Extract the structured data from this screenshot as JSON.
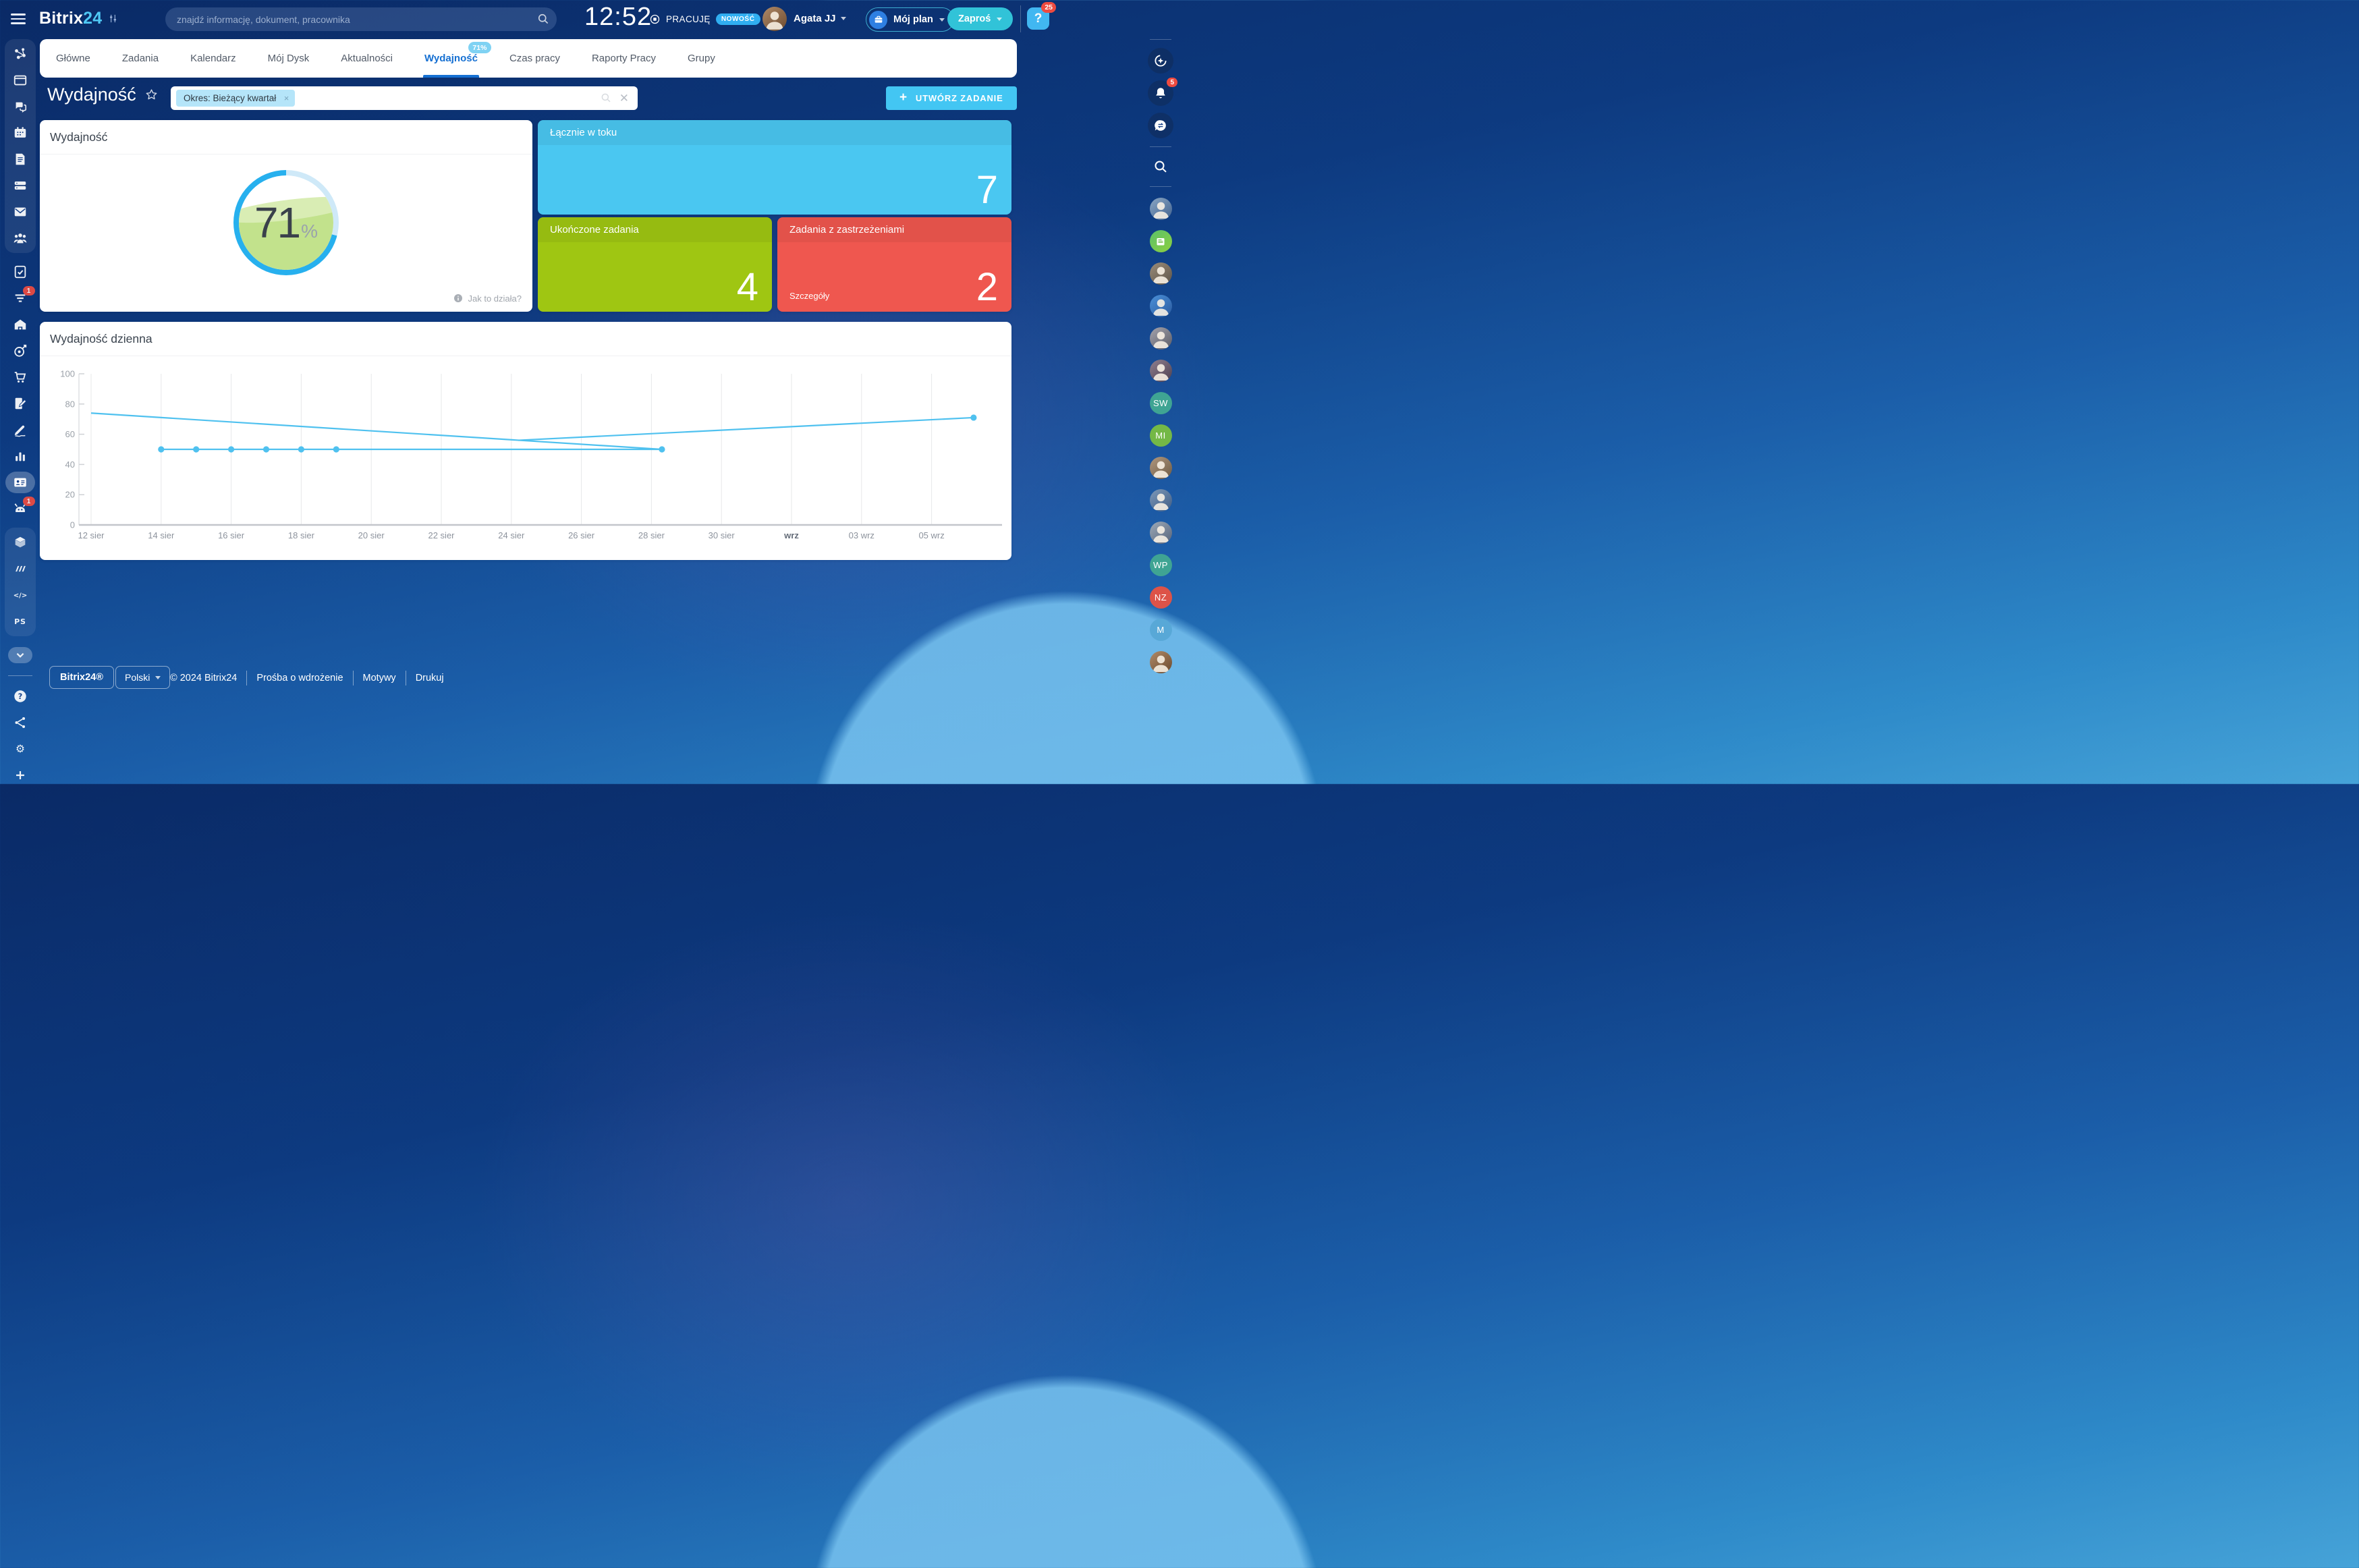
{
  "accent_colors": {
    "topbar_navy": "#0d3a80",
    "active_tab_blue": "#1670d2",
    "cyan_button": "#43c6f3",
    "teal_button": "#31c3d8",
    "card_blue": "#4ac7f1",
    "card_green": "#9fc612",
    "card_red": "#ef574f",
    "gauge_blue": "#27b0ee",
    "gauge_green": "#c2e28c",
    "line_blue": "#4fc1ef",
    "badge_red": "#ee4b40"
  },
  "topbar": {
    "logo_part1": "Bitrix",
    "logo_part2": "24",
    "search_placeholder": "znajdź informację, dokument, pracownika",
    "clock": "12:52",
    "status_label": "PRACUJĘ",
    "status_badge": "NOWOŚĆ",
    "user_name": "Agata JJ",
    "my_plan_label": "Mój plan",
    "invite_label": "Zaproś",
    "help_badge": "25"
  },
  "tabs": [
    {
      "label": "Główne"
    },
    {
      "label": "Zadania"
    },
    {
      "label": "Kalendarz"
    },
    {
      "label": "Mój Dysk"
    },
    {
      "label": "Aktualności"
    },
    {
      "label": "Wydajność",
      "active": true,
      "badge": "71%"
    },
    {
      "label": "Czas pracy"
    },
    {
      "label": "Raporty Pracy"
    },
    {
      "label": "Grupy"
    }
  ],
  "page": {
    "title": "Wydajność",
    "filter_chip": "Okres: Bieżący kwartał",
    "create_task_label": "UTWÓRZ ZADANIE"
  },
  "widgets": {
    "gauge": {
      "title": "Wydajność",
      "value": "71",
      "unit": "%",
      "help_link": "Jak to działa?"
    },
    "cards": [
      {
        "title": "Łącznie w toku",
        "value": "7"
      },
      {
        "title": "Ukończone zadania",
        "value": "4"
      },
      {
        "title": "Zadania z zastrzeżeniami",
        "value": "2",
        "link": "Szczegóły"
      }
    ]
  },
  "chart_card": {
    "title": "Wydajność dzienna"
  },
  "chart_data": {
    "type": "line",
    "title": "Wydajność dzienna",
    "x_unit": "days since 12 sie",
    "x_ticks": [
      {
        "day": 0,
        "label": "12 sier"
      },
      {
        "day": 2,
        "label": "14 sier"
      },
      {
        "day": 4,
        "label": "16 sier"
      },
      {
        "day": 6,
        "label": "18 sier"
      },
      {
        "day": 8,
        "label": "20 sier"
      },
      {
        "day": 10,
        "label": "22 sier"
      },
      {
        "day": 12,
        "label": "24 sier"
      },
      {
        "day": 14,
        "label": "26 sier"
      },
      {
        "day": 16,
        "label": "28 sier"
      },
      {
        "day": 18,
        "label": "30 sier"
      },
      {
        "day": 20,
        "label": "wrz",
        "bold": true
      },
      {
        "day": 22,
        "label": "03 wrz"
      },
      {
        "day": 24,
        "label": "05 wrz"
      }
    ],
    "ylim": [
      0,
      100
    ],
    "yticks": [
      0,
      20,
      40,
      60,
      80,
      100
    ],
    "grid": "vertical",
    "legend": "none",
    "line_color": "#4fc1ef",
    "series": [
      {
        "name": "trend-declining",
        "points": [
          [
            0,
            74
          ],
          [
            16.3,
            50
          ]
        ],
        "markers": []
      },
      {
        "name": "daily-performance",
        "points": [
          [
            2,
            50
          ],
          [
            3,
            50
          ],
          [
            4,
            50
          ],
          [
            5,
            50
          ],
          [
            6,
            50
          ],
          [
            7,
            50
          ],
          [
            16.3,
            50
          ]
        ],
        "markers": [
          [
            2,
            50
          ],
          [
            3,
            50
          ],
          [
            4,
            50
          ],
          [
            5,
            50
          ],
          [
            6,
            50
          ],
          [
            7,
            50
          ],
          [
            16.3,
            50
          ]
        ]
      },
      {
        "name": "trend-rising",
        "points": [
          [
            12.2,
            56
          ],
          [
            25.2,
            71
          ]
        ],
        "markers": [
          [
            25.2,
            71
          ]
        ]
      }
    ]
  },
  "footer": {
    "brand": "Bitrix24®",
    "language": "Polski",
    "copyright": "© 2024 Bitrix24",
    "links": [
      "Prośba o wdrożenie",
      "Motywy",
      "Drukuj"
    ]
  },
  "left_rail": {
    "sections": [
      {
        "group": true,
        "items": [
          {
            "icon": "network"
          },
          {
            "icon": "feed"
          },
          {
            "icon": "chat"
          },
          {
            "icon": "calendar"
          },
          {
            "icon": "docs"
          },
          {
            "icon": "drive"
          },
          {
            "icon": "mail"
          },
          {
            "icon": "people"
          }
        ]
      },
      {
        "group": false,
        "items": [
          {
            "icon": "tasks"
          },
          {
            "icon": "crm",
            "badge": "1"
          },
          {
            "icon": "warehouse"
          },
          {
            "icon": "marketing"
          },
          {
            "icon": "shop"
          },
          {
            "icon": "sign"
          },
          {
            "icon": "esign"
          },
          {
            "icon": "analytics"
          },
          {
            "icon": "idcard",
            "active": true
          },
          {
            "icon": "robot",
            "badge": "1"
          }
        ]
      },
      {
        "group": true,
        "items": [
          {
            "icon": "cube"
          },
          {
            "icon": "mlogo"
          },
          {
            "icon": "code"
          },
          {
            "icon": "ps"
          }
        ]
      },
      {
        "group": false,
        "items": [
          {
            "icon": "chevron",
            "pill": true
          },
          {
            "divider": true
          },
          {
            "icon": "helpq"
          },
          {
            "icon": "share2"
          },
          {
            "icon": "gear"
          },
          {
            "icon": "plusico"
          }
        ]
      }
    ]
  },
  "right_rail": {
    "top_icons": [
      {
        "icon": "copilot",
        "name": "copilot"
      },
      {
        "icon": "bell",
        "name": "notifications",
        "badge": "5"
      },
      {
        "icon": "chathist",
        "name": "chat-history"
      }
    ],
    "search_icon": "mag",
    "avatars": [
      {
        "kind": "photo",
        "colors": [
          "#8aa6c4",
          "#41628f"
        ]
      },
      {
        "kind": "news",
        "colors": [
          "#59c06a",
          "#8ed03f"
        ]
      },
      {
        "kind": "photo",
        "colors": [
          "#9b8d7a",
          "#5d5348"
        ]
      },
      {
        "kind": "photo",
        "colors": [
          "#4a90d9",
          "#2b5a9e"
        ]
      },
      {
        "kind": "photo",
        "colors": [
          "#a3a3ad",
          "#5c5c66"
        ]
      },
      {
        "kind": "photo",
        "colors": [
          "#8f7f8f",
          "#4d4050"
        ]
      },
      {
        "kind": "initials",
        "label": "SW",
        "colors": [
          "#3fa493",
          "#3fa493"
        ]
      },
      {
        "kind": "initials",
        "label": "MI",
        "colors": [
          "#74b846",
          "#74b846"
        ]
      },
      {
        "kind": "photo",
        "colors": [
          "#b0987f",
          "#6e5a43"
        ]
      },
      {
        "kind": "photo",
        "colors": [
          "#7d98b8",
          "#3f5d85"
        ]
      },
      {
        "kind": "photo",
        "colors": [
          "#9daab8",
          "#56637a"
        ]
      },
      {
        "kind": "initials",
        "label": "WP",
        "colors": [
          "#3fa493",
          "#3fa493"
        ]
      },
      {
        "kind": "initials",
        "label": "NZ",
        "colors": [
          "#dd5348",
          "#dd5348"
        ]
      },
      {
        "kind": "initials",
        "label": "M",
        "colors": [
          "#58a8d7",
          "#58a8d7"
        ]
      },
      {
        "kind": "photo",
        "colors": [
          "#b08a68",
          "#6b4a2f"
        ]
      }
    ]
  }
}
